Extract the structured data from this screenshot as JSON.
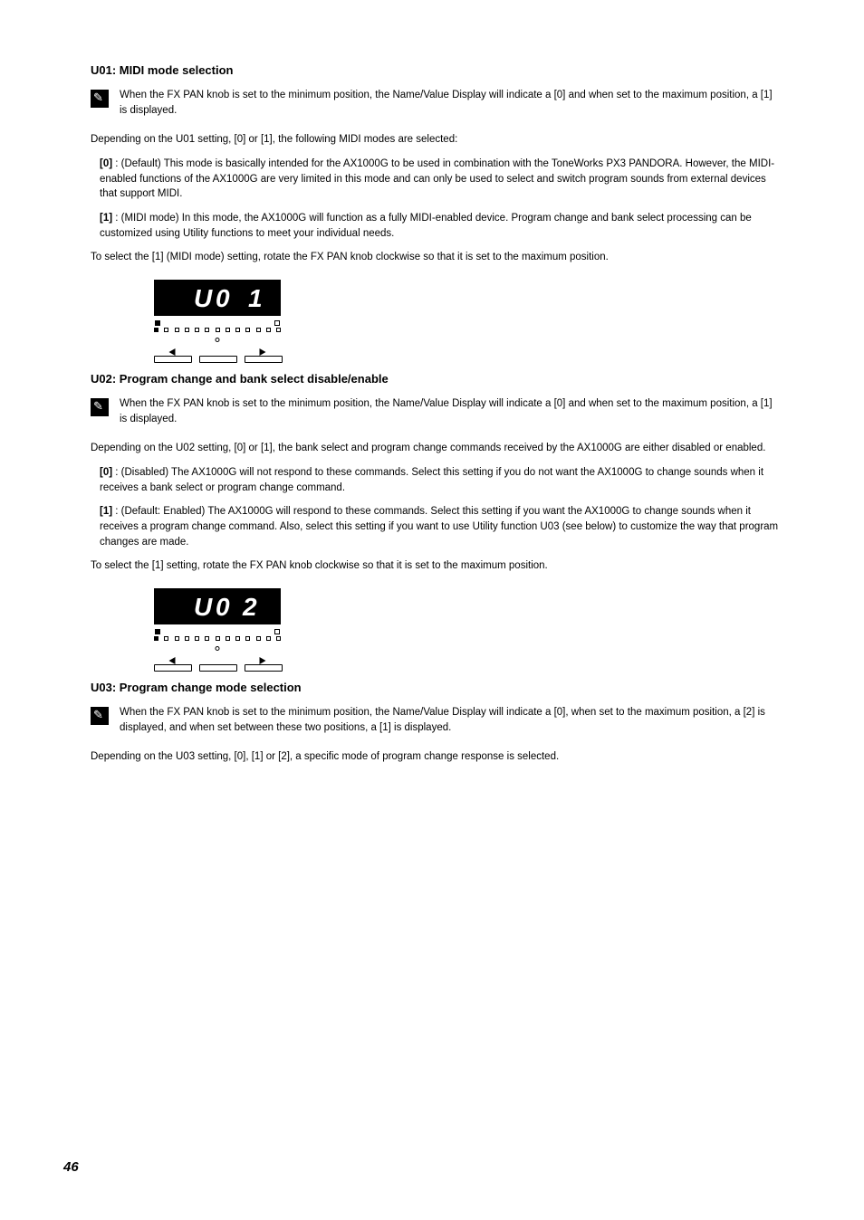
{
  "page_number": "46",
  "colors": {
    "background": "#ffffff",
    "text": "#000000",
    "lcd_background": "#000000",
    "lcd_text": "#ffffff"
  },
  "section1": {
    "title": "U01: MIDI mode selection",
    "note": "When the FX PAN knob is set to the minimum position, the Name/Value Display will indicate a [0] and when set to the maximum position, a [1] is displayed.",
    "para1": "Depending on the U01 setting, [0] or [1], the following MIDI modes are selected:",
    "item0_label": "[0]",
    "item0_body": " : (Default) This mode is basically intended for the AX1000G to be used in combination with the ToneWorks PX3 PANDORA. However, the MIDI-enabled functions of the AX1000G are very limited in this mode and can only be used to select and switch program sounds from external devices that support MIDI.",
    "item1_label": "[1]",
    "item1_body": " : (MIDI mode) In this mode, the AX1000G will function as a fully MIDI-enabled device. Program change and bank select processing can be customized using Utility functions to meet your individual needs.",
    "para2": "To select the [1] (MIDI mode) setting, rotate the FX PAN knob clockwise so that it is set to the maximum position.",
    "display_value": "U01"
  },
  "section2": {
    "title": "U02: Program change and bank select disable/enable",
    "note": "When the FX PAN knob is set to the minimum position, the Name/Value Display will indicate a [0] and when set to the maximum position, a [1] is displayed.",
    "para1": "Depending on the U02 setting, [0] or [1], the bank select and program change commands received by the AX1000G are either disabled or enabled.",
    "item0_label": "[0]",
    "item0_body": " : (Disabled) The AX1000G will not respond to these commands. Select this setting if you do not want the AX1000G to change sounds when it receives a bank select or program change command.",
    "item1_label": "[1]",
    "item1_body": " : (Default: Enabled) The AX1000G will respond to these commands. Select this setting if you want the AX1000G to change sounds when it receives a program change command. Also, select this setting if you want to use Utility function U03 (see below) to customize the way that program changes are made.",
    "para2": "To select the [1] setting, rotate the FX PAN knob clockwise so that it is set to the maximum position.",
    "display_value": "U02"
  },
  "section3": {
    "title": "U03: Program change mode selection",
    "note": "When the FX PAN knob is set to the minimum position, the Name/Value Display will indicate a [0], when set to the maximum position, a [2] is displayed, and when set between these two positions, a [1] is displayed.",
    "para1": "Depending on the U03 setting, [0], [1] or [2], a specific mode of program change response is selected."
  }
}
